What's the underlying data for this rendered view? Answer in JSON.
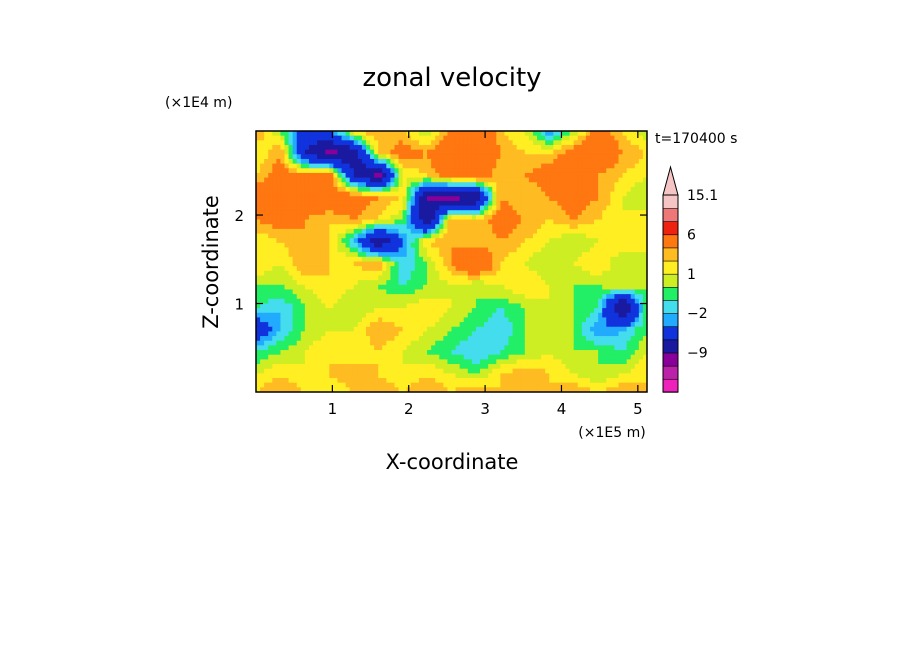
{
  "chart_data": {
    "type": "heatmap",
    "title": "zonal velocity",
    "xlabel": "X-coordinate",
    "ylabel": "Z-coordinate",
    "x_unit": "(×1E5 m)",
    "y_unit": "(×1E4 m)",
    "time_label": "t=170400 s",
    "xlim": [
      0,
      5.12
    ],
    "ylim": [
      0,
      2.95
    ],
    "x_ticks": [
      1,
      2,
      3,
      4,
      5
    ],
    "y_ticks": [
      1,
      2
    ],
    "x_tick_labels": [
      "1",
      "2",
      "3",
      "4",
      "5"
    ],
    "y_tick_labels": [
      "1",
      "2"
    ],
    "colorbar": {
      "levels": [
        -15,
        -12,
        -9,
        -6,
        -3,
        -2,
        -1,
        0,
        1,
        2,
        3,
        6,
        9,
        12,
        15.1
      ],
      "colors": [
        "#ee22bb",
        "#bb22aa",
        "#880099",
        "#1a1aa0",
        "#1133dd",
        "#22aaff",
        "#44ddee",
        "#22ee66",
        "#ccee22",
        "#ffee22",
        "#ffbb22",
        "#ff7711",
        "#ee2211",
        "#ee7777",
        "#f5c4c4"
      ],
      "labels": [
        {
          "value": -9,
          "text": "−9"
        },
        {
          "value": -2,
          "text": "−2"
        },
        {
          "value": 1,
          "text": "1"
        },
        {
          "value": 6,
          "text": "6"
        },
        {
          "value": 15.1,
          "text": "15.1"
        }
      ],
      "extend": "max"
    },
    "field": {
      "grid_x": [
        0,
        0.32,
        0.64,
        0.96,
        1.28,
        1.6,
        1.92,
        2.24,
        2.56,
        2.88,
        3.2,
        3.52,
        3.84,
        4.16,
        4.48,
        4.8,
        5.12
      ],
      "grid_z": [
        2.95,
        2.7,
        2.45,
        2.2,
        1.95,
        1.7,
        1.45,
        1.2,
        0.95,
        0.7,
        0.45,
        0.2,
        0
      ],
      "values": [
        [
          3,
          0,
          -4,
          -3,
          2,
          3,
          2,
          0,
          3,
          6,
          2,
          1,
          -3,
          0,
          4,
          2,
          0
        ],
        [
          1,
          3,
          -6,
          -10,
          -8,
          2,
          4,
          3,
          6,
          6,
          3,
          2,
          2,
          4,
          5,
          3,
          2
        ],
        [
          2,
          4,
          3,
          4,
          -6,
          -10,
          1,
          2,
          4,
          5,
          2,
          3,
          4,
          6,
          3,
          2,
          1
        ],
        [
          4,
          6,
          5,
          5,
          4,
          3,
          2,
          -9,
          -10,
          -9,
          3,
          2,
          3,
          4,
          3,
          1,
          0
        ],
        [
          3,
          4,
          3,
          2,
          3,
          2,
          0,
          -9,
          3,
          2,
          4,
          3,
          2,
          3,
          2,
          1,
          2
        ],
        [
          1,
          2,
          3,
          2,
          -2,
          -9,
          -3,
          2,
          3,
          2,
          3,
          2,
          1,
          0,
          1,
          2,
          1
        ],
        [
          2,
          1,
          3,
          2,
          2,
          3,
          -2,
          0,
          3,
          6,
          2,
          1,
          0,
          1,
          2,
          0,
          1
        ],
        [
          0,
          0,
          1,
          2,
          1,
          0,
          -1,
          0,
          1,
          0,
          1,
          2,
          1,
          0,
          0,
          1,
          0
        ],
        [
          -1,
          -2,
          0,
          1,
          0,
          1,
          1,
          2,
          1,
          0,
          -1,
          0,
          1,
          0,
          -1,
          -10,
          0
        ],
        [
          -5,
          -2,
          0,
          1,
          1,
          3,
          2,
          1,
          0,
          -1,
          -2,
          0,
          1,
          0,
          -3,
          -2,
          0
        ],
        [
          -1,
          0,
          1,
          2,
          1,
          2,
          1,
          0,
          -1,
          -2,
          -1,
          0,
          1,
          0,
          0,
          -1,
          1
        ],
        [
          1,
          2,
          1,
          2,
          3,
          2,
          1,
          2,
          1,
          0,
          2,
          3,
          2,
          1,
          0,
          1,
          2
        ],
        [
          2,
          3,
          2,
          1,
          2,
          3,
          2,
          3,
          2,
          3,
          2,
          3,
          2,
          3,
          2,
          3,
          2
        ]
      ]
    }
  }
}
